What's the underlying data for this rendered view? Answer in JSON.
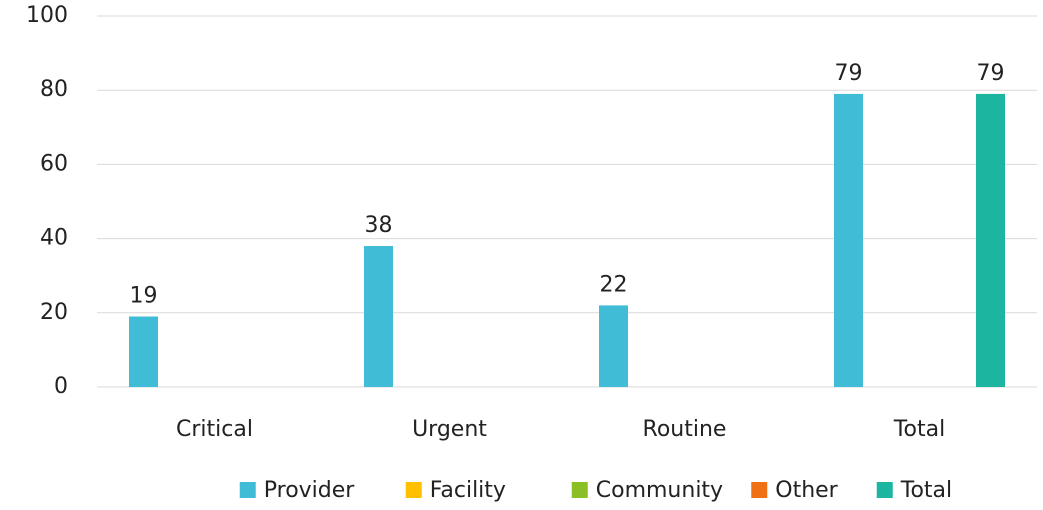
{
  "chart_data": {
    "type": "bar",
    "categories": [
      "Critical",
      "Urgent",
      "Routine",
      "Total"
    ],
    "series": [
      {
        "name": "Provider",
        "color": "#41bcd6",
        "values": [
          19,
          38,
          22,
          79
        ]
      },
      {
        "name": "Facility",
        "color": "#ffc000",
        "values": [
          null,
          null,
          null,
          null
        ]
      },
      {
        "name": "Community",
        "color": "#8cbf26",
        "values": [
          null,
          null,
          null,
          null
        ]
      },
      {
        "name": "Other",
        "color": "#f07113",
        "values": [
          null,
          null,
          null,
          null
        ]
      },
      {
        "name": "Total",
        "color": "#1cb59f",
        "values": [
          null,
          null,
          null,
          79
        ]
      }
    ],
    "ylim": [
      0,
      100
    ],
    "yticks": [
      0,
      20,
      40,
      60,
      80,
      100
    ],
    "grid": true,
    "legend": "bottom"
  }
}
